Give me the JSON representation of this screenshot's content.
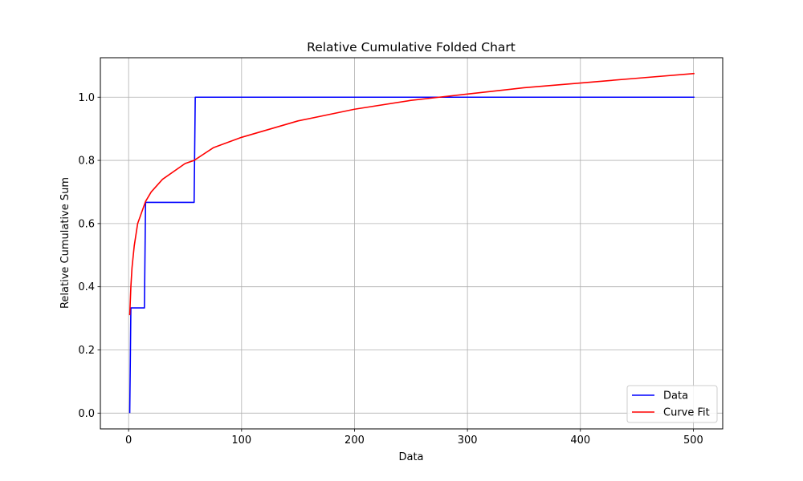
{
  "chart_data": {
    "type": "line",
    "title": "Relative Cumulative Folded Chart",
    "xlabel": "Data",
    "ylabel": "Relative Cumulative Sum",
    "xlim": [
      -25,
      526
    ],
    "ylim": [
      -0.05,
      1.125
    ],
    "x_ticks": [
      0,
      100,
      200,
      300,
      400,
      500
    ],
    "y_ticks": [
      0.0,
      0.2,
      0.4,
      0.6,
      0.8,
      1.0
    ],
    "x_tick_labels": [
      "0",
      "100",
      "200",
      "300",
      "400",
      "500"
    ],
    "y_tick_labels": [
      "0.0",
      "0.2",
      "0.4",
      "0.6",
      "0.8",
      "1.0"
    ],
    "grid": true,
    "legend_position": "lower-right",
    "series": [
      {
        "name": "Data",
        "color": "#0000ff",
        "style": "step",
        "x": [
          1,
          1,
          2,
          14,
          15,
          58,
          59,
          501
        ],
        "y": [
          0.0,
          0.0,
          0.333,
          0.333,
          0.667,
          0.667,
          1.0,
          1.0
        ]
      },
      {
        "name": "Curve Fit",
        "color": "#ff0000",
        "style": "line",
        "x": [
          1,
          2,
          3,
          5,
          8,
          10,
          15,
          20,
          30,
          50,
          58,
          75,
          100,
          150,
          200,
          250,
          275,
          300,
          350,
          400,
          450,
          501
        ],
        "y": [
          0.31,
          0.4,
          0.46,
          0.53,
          0.6,
          0.62,
          0.67,
          0.7,
          0.74,
          0.79,
          0.8,
          0.84,
          0.873,
          0.925,
          0.962,
          0.99,
          1.0,
          1.01,
          1.03,
          1.045,
          1.06,
          1.075
        ]
      }
    ]
  }
}
